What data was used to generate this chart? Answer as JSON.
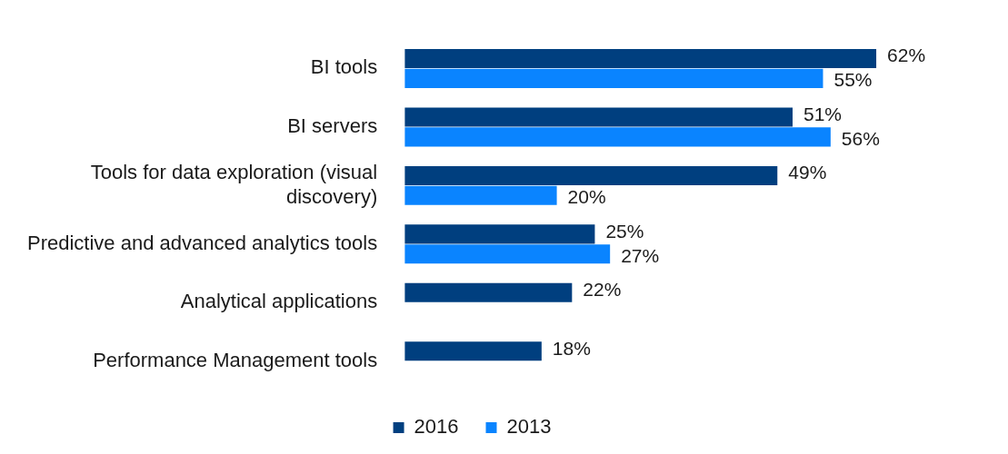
{
  "chart_data": {
    "type": "bar",
    "orientation": "horizontal",
    "categories": [
      "BI tools",
      "BI servers",
      "Tools for data exploration (visual discovery)",
      "Predictive and advanced analytics tools",
      "Analytical applications",
      "Performance Management tools"
    ],
    "series": [
      {
        "name": "2016",
        "color": "#003f7f",
        "values": [
          62,
          51,
          49,
          25,
          22,
          18
        ],
        "value_labels": [
          "62%",
          "51%",
          "49%",
          "25%",
          "22%",
          "18%"
        ]
      },
      {
        "name": "2013",
        "color": "#0a84ff",
        "values": [
          55,
          56,
          20,
          27,
          null,
          null
        ],
        "value_labels": [
          "55%",
          "56%",
          "20%",
          "27%",
          null,
          null
        ]
      }
    ],
    "legend": "bottom",
    "tick_labels": "y"
  }
}
